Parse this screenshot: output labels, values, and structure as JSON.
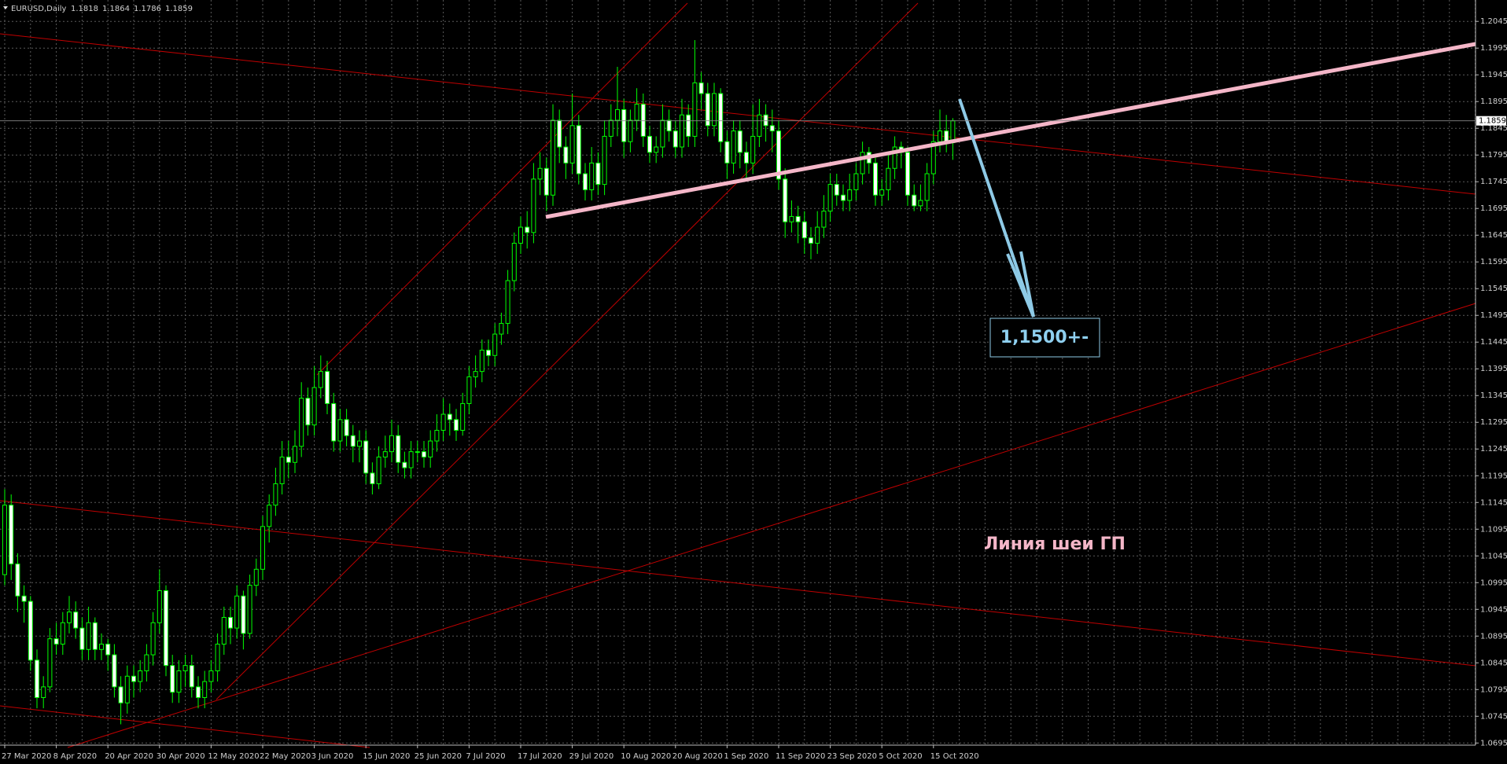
{
  "chart_data": {
    "type": "candlestick",
    "title": "EURUSD,Daily",
    "categories": [
      "27 Mar 2020",
      null,
      null,
      null,
      null,
      null,
      null,
      null,
      "8 Apr 2020",
      null,
      null,
      null,
      null,
      null,
      null,
      null,
      "20 Apr 2020",
      null,
      null,
      null,
      null,
      null,
      null,
      null,
      "30 Apr 2020",
      null,
      null,
      null,
      null,
      null,
      null,
      null,
      "12 May 2020",
      null,
      null,
      null,
      null,
      null,
      null,
      null,
      "22 May 2020",
      null,
      null,
      null,
      null,
      null,
      null,
      null,
      "3 Jun 2020",
      null,
      null,
      null,
      null,
      null,
      null,
      null,
      "15 Jun 2020",
      null,
      null,
      null,
      null,
      null,
      null,
      null,
      "25 Jun 2020",
      null,
      null,
      null,
      null,
      null,
      null,
      null,
      "7 Jul 2020",
      null,
      null,
      null,
      null,
      null,
      null,
      null,
      "17 Jul 2020",
      null,
      null,
      null,
      null,
      null,
      null,
      null,
      "29 Jul 2020",
      null,
      null,
      null,
      null,
      null,
      null,
      null,
      "10 Aug 2020",
      null,
      null,
      null,
      null,
      null,
      null,
      null,
      "20 Aug 2020",
      null,
      null,
      null,
      null,
      null,
      null,
      null,
      "1 Sep 2020",
      null,
      null,
      null,
      null,
      null,
      null,
      null,
      "11 Sep 2020",
      null,
      null,
      null,
      null,
      null,
      null,
      null,
      "23 Sep 2020",
      null,
      null,
      null,
      null,
      null,
      null,
      null,
      "5 Oct 2020",
      null,
      null,
      null,
      null,
      null,
      null,
      null,
      "15 Oct 2020",
      null,
      null,
      null
    ],
    "open": [
      1.101,
      1.114,
      1.103,
      1.097,
      1.096,
      1.085,
      1.078,
      1.08,
      1.089,
      1.088,
      1.092,
      1.094,
      1.091,
      1.087,
      1.092,
      1.087,
      1.088,
      1.086,
      1.08,
      1.077,
      1.082,
      1.081,
      1.083,
      1.086,
      1.092,
      1.098,
      1.084,
      1.079,
      1.083,
      1.084,
      1.08,
      1.078,
      1.081,
      1.083,
      1.088,
      1.093,
      1.091,
      1.097,
      1.09,
      1.099,
      1.102,
      1.11,
      1.114,
      1.118,
      1.123,
      1.122,
      1.125,
      1.134,
      1.129,
      1.136,
      1.139,
      1.133,
      1.126,
      1.13,
      1.127,
      1.125,
      1.126,
      1.12,
      1.118,
      1.123,
      1.124,
      1.127,
      1.122,
      1.121,
      1.124,
      1.124,
      1.123,
      1.126,
      1.128,
      1.131,
      1.13,
      1.128,
      1.133,
      1.138,
      1.139,
      1.143,
      1.142,
      1.146,
      1.148,
      1.156,
      1.163,
      1.166,
      1.165,
      1.175,
      1.177,
      1.172,
      1.186,
      1.181,
      1.178,
      1.185,
      1.176,
      1.173,
      1.178,
      1.174,
      1.183,
      1.186,
      1.188,
      1.182,
      1.186,
      1.189,
      1.183,
      1.18,
      1.181,
      1.186,
      1.184,
      1.181,
      1.187,
      1.183,
      1.193,
      1.191,
      1.185,
      1.191,
      1.182,
      1.178,
      1.184,
      1.18,
      1.178,
      1.183,
      1.187,
      1.185,
      1.184,
      1.175,
      1.167,
      1.168,
      1.167,
      1.164,
      1.163,
      1.166,
      1.169,
      1.174,
      1.172,
      1.171,
      1.173,
      1.176,
      1.18,
      1.178,
      1.172,
      1.173,
      1.177,
      1.181,
      1.18,
      1.172,
      1.17,
      1.171,
      1.176,
      1.182,
      1.184,
      1.1818
    ],
    "high": [
      1.117,
      1.116,
      1.105,
      1.099,
      1.097,
      1.087,
      1.082,
      1.091,
      1.092,
      1.094,
      1.097,
      1.096,
      1.093,
      1.095,
      1.093,
      1.09,
      1.089,
      1.088,
      1.082,
      1.084,
      1.084,
      1.085,
      1.088,
      1.094,
      1.102,
      1.099,
      1.086,
      1.085,
      1.086,
      1.086,
      1.082,
      1.083,
      1.085,
      1.09,
      1.095,
      1.095,
      1.099,
      1.098,
      1.101,
      1.104,
      1.112,
      1.116,
      1.121,
      1.126,
      1.126,
      1.128,
      1.137,
      1.136,
      1.14,
      1.142,
      1.141,
      1.135,
      1.132,
      1.132,
      1.129,
      1.128,
      1.128,
      1.122,
      1.125,
      1.127,
      1.13,
      1.129,
      1.124,
      1.126,
      1.126,
      1.126,
      1.128,
      1.131,
      1.134,
      1.133,
      1.132,
      1.135,
      1.14,
      1.142,
      1.145,
      1.145,
      1.148,
      1.15,
      1.158,
      1.165,
      1.168,
      1.169,
      1.178,
      1.18,
      1.179,
      1.189,
      1.188,
      1.183,
      1.191,
      1.187,
      1.178,
      1.181,
      1.18,
      1.186,
      1.189,
      1.196,
      1.19,
      1.188,
      1.192,
      1.191,
      1.185,
      1.183,
      1.189,
      1.188,
      1.186,
      1.19,
      1.189,
      1.201,
      1.195,
      1.193,
      1.193,
      1.192,
      1.184,
      1.186,
      1.186,
      1.182,
      1.189,
      1.19,
      1.189,
      1.188,
      1.186,
      1.177,
      1.171,
      1.17,
      1.169,
      1.166,
      1.169,
      1.172,
      1.176,
      1.176,
      1.174,
      1.176,
      1.178,
      1.182,
      1.181,
      1.179,
      1.175,
      1.18,
      1.183,
      1.182,
      1.181,
      1.174,
      1.174,
      1.178,
      1.184,
      1.188,
      1.187,
      1.1864
    ],
    "low": [
      1.099,
      1.1,
      1.094,
      1.092,
      1.083,
      1.076,
      1.076,
      1.079,
      1.086,
      1.086,
      1.09,
      1.089,
      1.085,
      1.085,
      1.085,
      1.085,
      1.083,
      1.078,
      1.073,
      1.075,
      1.078,
      1.079,
      1.081,
      1.084,
      1.09,
      1.082,
      1.077,
      1.077,
      1.08,
      1.078,
      1.076,
      1.076,
      1.079,
      1.081,
      1.086,
      1.088,
      1.089,
      1.087,
      1.089,
      1.097,
      1.1,
      1.107,
      1.112,
      1.116,
      1.119,
      1.12,
      1.123,
      1.127,
      1.127,
      1.134,
      1.131,
      1.124,
      1.124,
      1.125,
      1.122,
      1.122,
      1.118,
      1.116,
      1.117,
      1.121,
      1.122,
      1.12,
      1.119,
      1.119,
      1.122,
      1.121,
      1.121,
      1.124,
      1.126,
      1.127,
      1.126,
      1.127,
      1.131,
      1.136,
      1.137,
      1.14,
      1.14,
      1.144,
      1.146,
      1.154,
      1.161,
      1.162,
      1.163,
      1.172,
      1.169,
      1.17,
      1.178,
      1.175,
      1.176,
      1.174,
      1.171,
      1.171,
      1.172,
      1.172,
      1.181,
      1.183,
      1.179,
      1.18,
      1.184,
      1.181,
      1.178,
      1.178,
      1.179,
      1.182,
      1.179,
      1.179,
      1.181,
      1.181,
      1.188,
      1.183,
      1.183,
      1.18,
      1.175,
      1.176,
      1.177,
      1.175,
      1.176,
      1.181,
      1.182,
      1.18,
      1.173,
      1.164,
      1.165,
      1.163,
      1.161,
      1.16,
      1.161,
      1.164,
      1.167,
      1.17,
      1.169,
      1.169,
      1.171,
      1.174,
      1.176,
      1.17,
      1.17,
      1.171,
      1.175,
      1.177,
      1.17,
      1.169,
      1.169,
      1.169,
      1.174,
      1.18,
      1.18,
      1.1786
    ],
    "close": [
      1.114,
      1.103,
      1.097,
      1.096,
      1.085,
      1.078,
      1.08,
      1.089,
      1.088,
      1.092,
      1.094,
      1.091,
      1.087,
      1.092,
      1.087,
      1.088,
      1.086,
      1.08,
      1.077,
      1.082,
      1.081,
      1.083,
      1.086,
      1.092,
      1.098,
      1.084,
      1.079,
      1.083,
      1.084,
      1.08,
      1.078,
      1.081,
      1.083,
      1.088,
      1.093,
      1.091,
      1.097,
      1.09,
      1.099,
      1.102,
      1.11,
      1.114,
      1.118,
      1.123,
      1.122,
      1.125,
      1.134,
      1.129,
      1.136,
      1.139,
      1.133,
      1.126,
      1.13,
      1.127,
      1.125,
      1.126,
      1.12,
      1.118,
      1.123,
      1.124,
      1.127,
      1.122,
      1.121,
      1.124,
      1.124,
      1.123,
      1.126,
      1.128,
      1.131,
      1.13,
      1.128,
      1.133,
      1.138,
      1.139,
      1.143,
      1.142,
      1.146,
      1.148,
      1.156,
      1.163,
      1.166,
      1.165,
      1.175,
      1.177,
      1.172,
      1.186,
      1.181,
      1.178,
      1.185,
      1.176,
      1.173,
      1.178,
      1.174,
      1.183,
      1.186,
      1.188,
      1.182,
      1.186,
      1.189,
      1.183,
      1.18,
      1.181,
      1.186,
      1.184,
      1.181,
      1.187,
      1.183,
      1.193,
      1.191,
      1.185,
      1.191,
      1.182,
      1.178,
      1.184,
      1.18,
      1.178,
      1.183,
      1.187,
      1.185,
      1.184,
      1.175,
      1.167,
      1.168,
      1.167,
      1.164,
      1.163,
      1.166,
      1.169,
      1.174,
      1.172,
      1.171,
      1.173,
      1.176,
      1.18,
      1.178,
      1.172,
      1.173,
      1.177,
      1.181,
      1.18,
      1.172,
      1.17,
      1.171,
      1.176,
      1.182,
      1.184,
      1.1818,
      1.1859
    ],
    "ylim": [
      1.0691,
      1.2085
    ],
    "yticks": [
      1.0695,
      1.0745,
      1.0795,
      1.0845,
      1.0895,
      1.0945,
      1.0995,
      1.1045,
      1.1095,
      1.1145,
      1.1195,
      1.1245,
      1.1295,
      1.1345,
      1.1395,
      1.1445,
      1.1495,
      1.1545,
      1.1595,
      1.1645,
      1.1695,
      1.1745,
      1.1795,
      1.1845,
      1.1895,
      1.1945,
      1.1995,
      1.2045
    ],
    "grid": true,
    "colors": {
      "wick": "#00ff00",
      "up_body": "#000000",
      "down_body": "#ffffff",
      "grid": "#5a5a5a"
    },
    "annotations": [
      "1,1500+-",
      "Линия шеи ГП"
    ]
  }
}
